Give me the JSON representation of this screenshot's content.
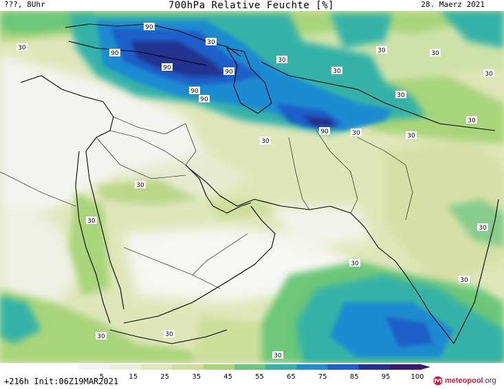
{
  "header": {
    "left": "???, 8Uhr",
    "title": "700hPa Relative Feuchte [%]",
    "right": "28. Maerz 2021"
  },
  "footer": {
    "left": "+216h Init:06Z19MAR2021"
  },
  "brand": {
    "name": "meteopool",
    "tld": ".org"
  },
  "legend": {
    "ticks": [
      "5",
      "15",
      "25",
      "35",
      "45",
      "55",
      "65",
      "75",
      "85",
      "95",
      "100"
    ],
    "colors": [
      "#f2f2f2",
      "#e9edd9",
      "#dfe6b9",
      "#cddf9a",
      "#a9d57a",
      "#6cc778",
      "#36b2a8",
      "#1f8bd1",
      "#1e5ec8",
      "#23328f",
      "#3a1a70"
    ]
  },
  "contour_labels": [
    "90",
    "90",
    "90",
    "90",
    "90",
    "90",
    "90",
    "30",
    "30",
    "30",
    "30",
    "30",
    "30",
    "30",
    "30",
    "30",
    "30",
    "30",
    "30",
    "30",
    "30",
    "30",
    "30",
    "30",
    "30",
    "30",
    "30"
  ]
}
